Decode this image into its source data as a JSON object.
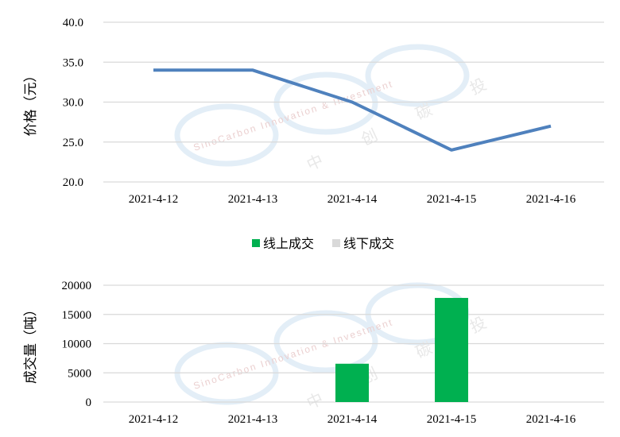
{
  "watermark": {
    "text": "SinoCarbon Innovation & Investment",
    "cn": "中 创 碳 投"
  },
  "chart_data": [
    {
      "type": "line",
      "categories": [
        "2021-4-12",
        "2021-4-13",
        "2021-4-14",
        "2021-4-15",
        "2021-4-16"
      ],
      "values": [
        34,
        34,
        30,
        24,
        27
      ],
      "ylabel": "价格（元）",
      "ylim": [
        20,
        40
      ],
      "yticks": [
        "20.0",
        "25.0",
        "30.0",
        "35.0",
        "40.0"
      ],
      "grid": true,
      "color": "#4F81BD"
    },
    {
      "type": "bar",
      "categories": [
        "2021-4-12",
        "2021-4-13",
        "2021-4-14",
        "2021-4-15",
        "2021-4-16"
      ],
      "series": [
        {
          "name": "线上成交",
          "values": [
            0,
            0,
            6560,
            17830,
            0
          ],
          "color": "#00B050"
        },
        {
          "name": "线下成交",
          "values": [
            0,
            0,
            0,
            0,
            0
          ],
          "color": "#D9D9D9"
        }
      ],
      "ylabel": "成交量（吨）",
      "ylim": [
        0,
        20000
      ],
      "yticks": [
        "0",
        "5000",
        "10000",
        "15000",
        "20000"
      ],
      "grid": true,
      "legend": "top"
    }
  ]
}
